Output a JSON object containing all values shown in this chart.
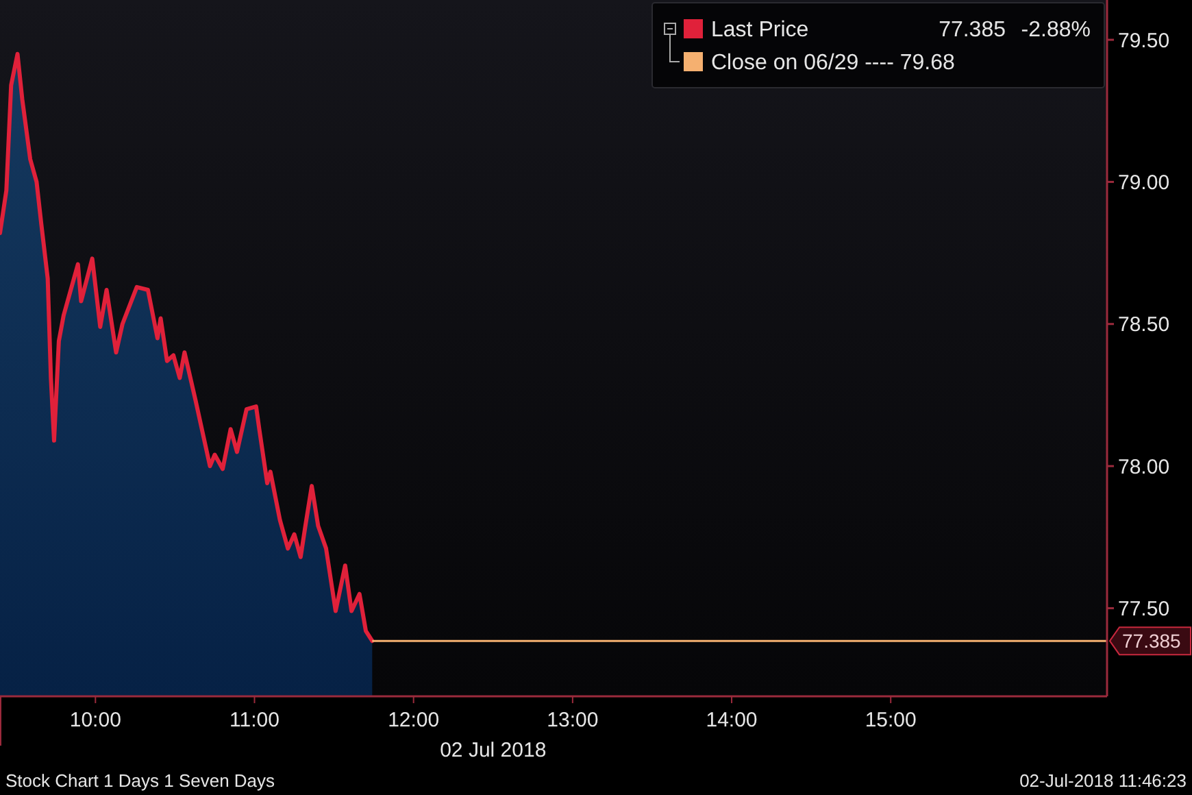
{
  "chart_data": {
    "type": "area",
    "xlabel": "02 Jul 2018",
    "x": [
      9.4,
      9.44,
      9.47,
      9.51,
      9.54,
      9.59,
      9.63,
      9.66,
      9.7,
      9.72,
      9.74,
      9.77,
      9.8,
      9.89,
      9.91,
      9.98,
      10.03,
      10.07,
      10.13,
      10.17,
      10.26,
      10.33,
      10.39,
      10.41,
      10.45,
      10.49,
      10.53,
      10.56,
      10.63,
      10.72,
      10.75,
      10.8,
      10.85,
      10.89,
      10.95,
      11.01,
      11.03,
      11.08,
      11.1,
      11.16,
      11.21,
      11.25,
      11.29,
      11.32,
      11.36,
      11.4,
      11.45,
      11.51,
      11.57,
      11.61,
      11.66,
      11.7,
      11.74
    ],
    "series": [
      {
        "name": "Last Price",
        "color": "#e0213a",
        "values": [
          78.82,
          78.97,
          79.34,
          79.45,
          79.29,
          79.08,
          79.0,
          78.85,
          78.66,
          78.31,
          78.09,
          78.44,
          78.53,
          78.71,
          78.58,
          78.73,
          78.49,
          78.62,
          78.4,
          78.5,
          78.63,
          78.62,
          78.45,
          78.52,
          78.37,
          78.39,
          78.31,
          78.4,
          78.23,
          78.0,
          78.04,
          77.99,
          78.13,
          78.05,
          78.2,
          78.21,
          78.13,
          77.94,
          77.98,
          77.81,
          77.71,
          77.76,
          77.68,
          77.79,
          77.93,
          77.79,
          77.71,
          77.49,
          77.65,
          77.49,
          77.55,
          77.42,
          77.385
        ]
      }
    ],
    "xlim": [
      9.4,
      16.36
    ],
    "ylim": [
      77.19,
      79.64
    ],
    "xticks": [
      {
        "value": 10,
        "label": "10:00"
      },
      {
        "value": 11,
        "label": "11:00"
      },
      {
        "value": 12,
        "label": "12:00"
      },
      {
        "value": 13,
        "label": "13:00"
      },
      {
        "value": 14,
        "label": "14:00"
      },
      {
        "value": 15,
        "label": "15:00"
      }
    ],
    "yticks": [
      {
        "value": 77.5,
        "label": "77.50"
      },
      {
        "value": 78,
        "label": "78.00"
      },
      {
        "value": 78.5,
        "label": "78.50"
      },
      {
        "value": 79,
        "label": "79.00"
      },
      {
        "value": 79.5,
        "label": "79.50"
      }
    ],
    "ref_lines": [
      {
        "axis": "y",
        "value": 77.385,
        "label": "77.385",
        "color": "#f5b070"
      }
    ],
    "annotations": [
      "77.385",
      "-2.88%",
      "Close on 06/29 ---- 79.68",
      "Stock Chart 1 Days 1 Seven Days",
      "02-Jul-2018 11:46:23"
    ],
    "legend": "top right",
    "grid": false
  }
}
